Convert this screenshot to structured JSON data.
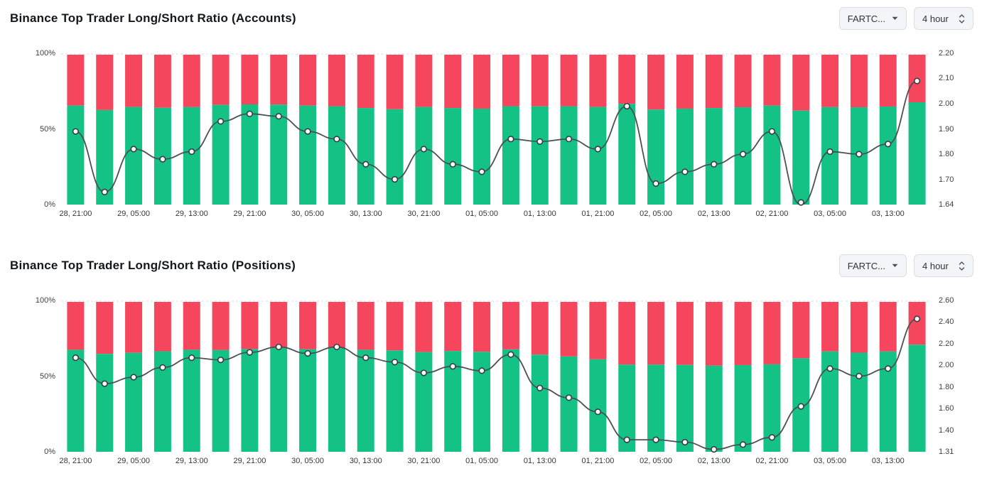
{
  "colors": {
    "long": "#14c286",
    "short": "#f6465d",
    "line": "#4b5058",
    "marker_fill": "#ffffff",
    "marker_stroke": "#383d45",
    "grid_dash": "#d9dde3",
    "axis_text": "#3b3f46",
    "control_bg": "#f3f5f8",
    "control_border": "#d9dee5"
  },
  "charts": [
    {
      "title": "Binance Top Trader Long/Short Ratio (Accounts)",
      "symbol_select": "FARTC...",
      "interval_select": "4 hour"
    },
    {
      "title": "Binance Top Trader Long/Short Ratio (Positions)",
      "symbol_select": "FARTC...",
      "interval_select": "4 hour"
    }
  ],
  "chart_data": [
    {
      "type": "bar+line",
      "title": "Binance Top Trader Long/Short Ratio (Accounts)",
      "bar_mode": "stacked-100%",
      "n_bars": 30,
      "bars_per_x_label": 2,
      "x_tick_labels": [
        "28, 21:00",
        "29, 05:00",
        "29, 13:00",
        "29, 21:00",
        "30, 05:00",
        "30, 13:00",
        "30, 21:00",
        "01, 05:00",
        "01, 13:00",
        "01, 21:00",
        "02, 05:00",
        "02, 13:00",
        "02, 21:00",
        "03, 05:00",
        "03, 13:00"
      ],
      "left_axis_ticks": [
        "100%",
        "50%",
        "0%"
      ],
      "right_axis_ticks": [
        "2.20",
        "2.10",
        "2.00",
        "1.90",
        "1.80",
        "1.70",
        "1.64"
      ],
      "grid": "top-dashed",
      "legend": "none",
      "series": [
        {
          "name": "Long Account %",
          "role": "bar-bottom",
          "values": [
            65.4,
            62.5,
            64.5,
            64.0,
            64.4,
            65.9,
            66.2,
            66.1,
            65.4,
            65.0,
            63.8,
            63.0,
            64.5,
            63.8,
            63.4,
            65.0,
            64.9,
            65.0,
            64.5,
            66.6,
            62.8,
            63.4,
            63.8,
            64.3,
            65.4,
            62.1,
            64.4,
            64.3,
            64.8,
            67.6
          ]
        },
        {
          "name": "Short Account %",
          "role": "bar-top",
          "values": [
            34.6,
            37.5,
            35.5,
            36.0,
            35.6,
            34.1,
            33.8,
            33.9,
            34.6,
            35.0,
            36.2,
            37.0,
            35.5,
            36.2,
            36.6,
            35.0,
            35.1,
            35.0,
            35.5,
            33.4,
            37.2,
            36.6,
            36.2,
            35.7,
            34.6,
            37.9,
            35.6,
            35.7,
            35.2,
            32.4
          ]
        },
        {
          "name": "Long/Short Ratio",
          "role": "line",
          "axis": "right",
          "values": [
            1.89,
            1.67,
            1.82,
            1.78,
            1.81,
            1.93,
            1.96,
            1.95,
            1.89,
            1.86,
            1.76,
            1.7,
            1.82,
            1.76,
            1.73,
            1.86,
            1.85,
            1.86,
            1.82,
            1.99,
            1.69,
            1.73,
            1.76,
            1.8,
            1.89,
            1.64,
            1.81,
            1.8,
            1.84,
            2.09
          ]
        }
      ]
    },
    {
      "type": "bar+line",
      "title": "Binance Top Trader Long/Short Ratio (Positions)",
      "bar_mode": "stacked-100%",
      "n_bars": 30,
      "bars_per_x_label": 2,
      "x_tick_labels": [
        "28, 21:00",
        "29, 05:00",
        "29, 13:00",
        "29, 21:00",
        "30, 05:00",
        "30, 13:00",
        "30, 21:00",
        "01, 05:00",
        "01, 13:00",
        "01, 21:00",
        "02, 05:00",
        "02, 13:00",
        "02, 21:00",
        "03, 05:00",
        "03, 13:00"
      ],
      "left_axis_ticks": [
        "100%",
        "50%",
        "0%"
      ],
      "right_axis_ticks": [
        "2.60",
        "2.40",
        "2.20",
        "2.00",
        "1.80",
        "1.60",
        "1.40",
        "1.31"
      ],
      "grid": "top-dashed",
      "legend": "none",
      "series": [
        {
          "name": "Long Position %",
          "role": "bar-bottom",
          "values": [
            67.4,
            64.7,
            65.4,
            66.4,
            67.4,
            67.2,
            67.9,
            68.5,
            67.8,
            68.5,
            67.4,
            67.0,
            65.9,
            66.6,
            66.1,
            67.7,
            64.2,
            63.0,
            61.1,
            57.6,
            57.6,
            57.4,
            56.9,
            57.3,
            57.8,
            61.8,
            66.3,
            65.5,
            66.3,
            70.8
          ]
        },
        {
          "name": "Short Position %",
          "role": "bar-top",
          "values": [
            32.6,
            35.3,
            34.6,
            33.6,
            32.6,
            32.8,
            32.1,
            31.5,
            32.2,
            31.5,
            32.6,
            33.0,
            34.1,
            33.4,
            33.9,
            32.3,
            35.8,
            37.0,
            38.9,
            42.4,
            42.4,
            42.6,
            43.1,
            42.7,
            42.2,
            38.2,
            33.7,
            34.5,
            33.7,
            29.2
          ]
        },
        {
          "name": "Long/Short Ratio",
          "role": "line",
          "axis": "right",
          "values": [
            2.07,
            1.83,
            1.89,
            1.98,
            2.07,
            2.05,
            2.12,
            2.17,
            2.11,
            2.17,
            2.07,
            2.03,
            1.93,
            1.99,
            1.95,
            2.1,
            1.79,
            1.7,
            1.57,
            1.36,
            1.36,
            1.35,
            1.32,
            1.34,
            1.37,
            1.62,
            1.97,
            1.9,
            1.97,
            2.43
          ]
        }
      ]
    }
  ]
}
